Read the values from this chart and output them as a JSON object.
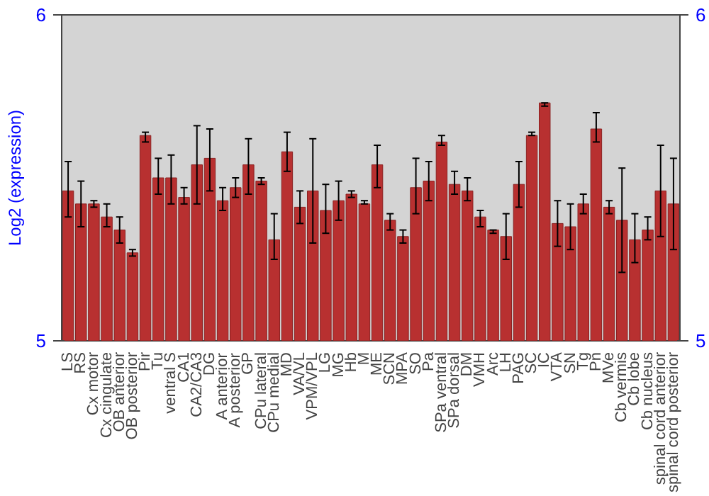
{
  "chart_data": {
    "type": "bar",
    "ylabel": "Log2 (expression)",
    "categories": [
      "LS",
      "RS",
      "Cx motor",
      "Cx cingulate",
      "OB anterior",
      "OB posterior",
      "Pir",
      "Tu",
      "ventral S",
      "CA1",
      "CA2/CA3",
      "DG",
      "A anterior",
      "A posterior",
      "GP",
      "CPu lateral",
      "CPu medial",
      "MD",
      "VA/VL",
      "VPM/VPL",
      "LG",
      "MG",
      "Hb",
      "M",
      "ME",
      "SCN",
      "MPA",
      "SO",
      "Pa",
      "SPa ventral",
      "SPa dorsal",
      "DM",
      "VMH",
      "Arc",
      "LH",
      "PAG",
      "SC",
      "IC",
      "VTA",
      "SN",
      "Tg",
      "Pn",
      "MVe",
      "Cb vermis",
      "Cb lobe",
      "Cb nucleus",
      "spinal cord anterior",
      "spinal cord posterior"
    ],
    "values": [
      5.46,
      5.42,
      5.42,
      5.38,
      5.34,
      5.27,
      5.63,
      5.5,
      5.5,
      5.44,
      5.54,
      5.56,
      5.43,
      5.47,
      5.54,
      5.49,
      5.31,
      5.58,
      5.41,
      5.46,
      5.4,
      5.43,
      5.45,
      5.42,
      5.54,
      5.37,
      5.32,
      5.47,
      5.49,
      5.61,
      5.48,
      5.46,
      5.38,
      5.34,
      5.32,
      5.48,
      5.63,
      5.73,
      5.36,
      5.35,
      5.42,
      5.65,
      5.41,
      5.37,
      5.31,
      5.34,
      5.46,
      5.42
    ],
    "errors": [
      [
        5.38,
        5.55
      ],
      [
        5.35,
        5.49
      ],
      [
        5.41,
        5.43
      ],
      [
        5.35,
        5.42
      ],
      [
        5.3,
        5.38
      ],
      [
        5.26,
        5.28
      ],
      [
        5.61,
        5.64
      ],
      [
        5.45,
        5.56
      ],
      [
        5.42,
        5.57
      ],
      [
        5.42,
        5.47
      ],
      [
        5.42,
        5.66
      ],
      [
        5.46,
        5.65
      ],
      [
        5.4,
        5.47
      ],
      [
        5.44,
        5.5
      ],
      [
        5.45,
        5.62
      ],
      [
        5.48,
        5.5
      ],
      [
        5.25,
        5.39
      ],
      [
        5.52,
        5.64
      ],
      [
        5.36,
        5.46
      ],
      [
        5.3,
        5.62
      ],
      [
        5.33,
        5.48
      ],
      [
        5.37,
        5.49
      ],
      [
        5.44,
        5.46
      ],
      [
        5.42,
        5.43
      ],
      [
        5.47,
        5.6
      ],
      [
        5.34,
        5.39
      ],
      [
        5.3,
        5.34
      ],
      [
        5.39,
        5.56
      ],
      [
        5.43,
        5.55
      ],
      [
        5.6,
        5.63
      ],
      [
        5.45,
        5.52
      ],
      [
        5.43,
        5.5
      ],
      [
        5.35,
        5.4
      ],
      [
        5.33,
        5.34
      ],
      [
        5.25,
        5.39
      ],
      [
        5.41,
        5.55
      ],
      [
        5.63,
        5.64
      ],
      [
        5.72,
        5.73
      ],
      [
        5.29,
        5.43
      ],
      [
        5.28,
        5.42
      ],
      [
        5.39,
        5.45
      ],
      [
        5.61,
        5.7
      ],
      [
        5.39,
        5.43
      ],
      [
        5.21,
        5.53
      ],
      [
        5.24,
        5.39
      ],
      [
        5.31,
        5.38
      ],
      [
        5.32,
        5.6
      ],
      [
        5.28,
        5.56
      ]
    ],
    "color": "#b83030",
    "ylim": [
      5,
      6
    ],
    "yticks": [
      5,
      6
    ],
    "y2lim": [
      5,
      6
    ],
    "y2ticks": [
      5,
      6
    ],
    "grid": false
  }
}
